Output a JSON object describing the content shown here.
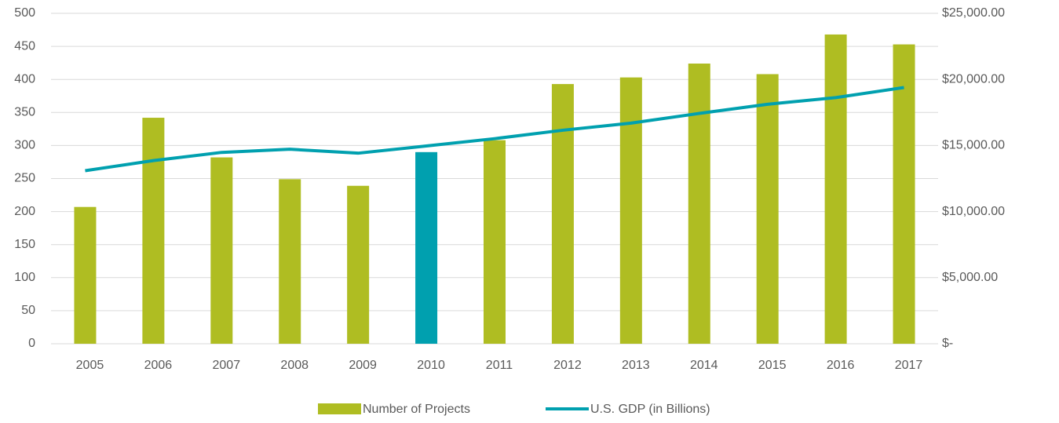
{
  "chart_data": {
    "type": "bar-line",
    "categories": [
      "2005",
      "2006",
      "2007",
      "2008",
      "2009",
      "2010",
      "2011",
      "2012",
      "2013",
      "2014",
      "2015",
      "2016",
      "2017"
    ],
    "series": [
      {
        "name": "Number of Projects",
        "type": "bar",
        "color": "#afbd22",
        "point_colors": [
          "#afbd22",
          "#afbd22",
          "#afbd22",
          "#afbd22",
          "#afbd22",
          "#00a0af",
          "#afbd22",
          "#afbd22",
          "#afbd22",
          "#afbd22",
          "#afbd22",
          "#afbd22",
          "#afbd22"
        ],
        "values": [
          207,
          342,
          282,
          249,
          239,
          290,
          308,
          393,
          403,
          424,
          408,
          468,
          453
        ]
      },
      {
        "name": "U.S. GDP (in Billions)",
        "type": "line",
        "axis": "y2",
        "color": "#00a0af",
        "values": [
          13094,
          13856,
          14478,
          14719,
          14419,
          14964,
          15518,
          16155,
          16692,
          17428,
          18121,
          18625,
          19390
        ]
      }
    ],
    "ylim": [
      0,
      500
    ],
    "yticks": [
      0,
      50,
      100,
      150,
      200,
      250,
      300,
      350,
      400,
      450,
      500
    ],
    "y2lim": [
      0,
      25000
    ],
    "y2ticks": [
      {
        "value": 0,
        "label": "$-"
      },
      {
        "value": 5000,
        "label": "$5,000.00"
      },
      {
        "value": 10000,
        "label": "$10,000.00"
      },
      {
        "value": 15000,
        "label": "$15,000.00"
      },
      {
        "value": 20000,
        "label": "$20,000.00"
      },
      {
        "value": 25000,
        "label": "$25,000.00"
      }
    ],
    "grid": true,
    "legend": "bottom"
  }
}
